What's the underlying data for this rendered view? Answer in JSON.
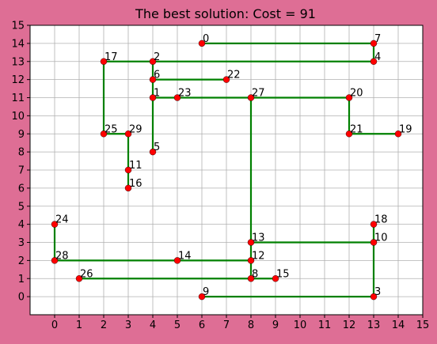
{
  "chart_data": {
    "type": "scatter",
    "title": "The best solution: Cost = 91",
    "xlim": [
      -1,
      15
    ],
    "ylim": [
      -1,
      15
    ],
    "x_ticks": [
      0,
      1,
      2,
      3,
      4,
      5,
      6,
      7,
      8,
      9,
      10,
      11,
      12,
      13,
      14,
      15
    ],
    "y_ticks": [
      0,
      1,
      2,
      3,
      4,
      5,
      6,
      7,
      8,
      9,
      10,
      11,
      12,
      13,
      14,
      15
    ],
    "grid": true,
    "colors": {
      "background": "#DE6E95",
      "plot": "#FFFFFF",
      "edge": "#008000",
      "point": "#FF0000",
      "grid": "#B0B0B0"
    },
    "points": [
      {
        "id": "0",
        "x": 6,
        "y": 14
      },
      {
        "id": "1",
        "x": 4,
        "y": 11
      },
      {
        "id": "2",
        "x": 4,
        "y": 13
      },
      {
        "id": "3",
        "x": 13,
        "y": 0
      },
      {
        "id": "4",
        "x": 13,
        "y": 13
      },
      {
        "id": "5",
        "x": 4,
        "y": 8
      },
      {
        "id": "6",
        "x": 4,
        "y": 12
      },
      {
        "id": "7",
        "x": 13,
        "y": 14
      },
      {
        "id": "8",
        "x": 8,
        "y": 1
      },
      {
        "id": "9",
        "x": 6,
        "y": 0
      },
      {
        "id": "10",
        "x": 13,
        "y": 3
      },
      {
        "id": "11",
        "x": 3,
        "y": 7
      },
      {
        "id": "12",
        "x": 8,
        "y": 2
      },
      {
        "id": "13",
        "x": 8,
        "y": 3
      },
      {
        "id": "14",
        "x": 5,
        "y": 2
      },
      {
        "id": "15",
        "x": 9,
        "y": 1
      },
      {
        "id": "16",
        "x": 3,
        "y": 6
      },
      {
        "id": "17",
        "x": 2,
        "y": 13
      },
      {
        "id": "18",
        "x": 13,
        "y": 4
      },
      {
        "id": "19",
        "x": 14,
        "y": 9
      },
      {
        "id": "20",
        "x": 12,
        "y": 11
      },
      {
        "id": "21",
        "x": 12,
        "y": 9
      },
      {
        "id": "22",
        "x": 7,
        "y": 12
      },
      {
        "id": "23",
        "x": 5,
        "y": 11
      },
      {
        "id": "24",
        "x": 0,
        "y": 4
      },
      {
        "id": "25",
        "x": 2,
        "y": 9
      },
      {
        "id": "26",
        "x": 1,
        "y": 1
      },
      {
        "id": "27",
        "x": 8,
        "y": 11
      },
      {
        "id": "28",
        "x": 0,
        "y": 2
      },
      {
        "id": "29",
        "x": 3,
        "y": 9
      }
    ],
    "edges": [
      [
        [
          6,
          14
        ],
        [
          13,
          14
        ]
      ],
      [
        [
          13,
          14
        ],
        [
          13,
          13
        ]
      ],
      [
        [
          2,
          13
        ],
        [
          13,
          13
        ]
      ],
      [
        [
          2,
          13
        ],
        [
          2,
          9
        ]
      ],
      [
        [
          4,
          13
        ],
        [
          4,
          12
        ]
      ],
      [
        [
          4,
          12
        ],
        [
          7,
          12
        ]
      ],
      [
        [
          4,
          12
        ],
        [
          4,
          8
        ]
      ],
      [
        [
          4,
          11
        ],
        [
          12,
          11
        ]
      ],
      [
        [
          12,
          11
        ],
        [
          12,
          9
        ]
      ],
      [
        [
          12,
          9
        ],
        [
          14,
          9
        ]
      ],
      [
        [
          8,
          11
        ],
        [
          8,
          1
        ]
      ],
      [
        [
          2,
          9
        ],
        [
          3,
          9
        ]
      ],
      [
        [
          3,
          9
        ],
        [
          3,
          6
        ]
      ],
      [
        [
          8,
          3
        ],
        [
          13,
          3
        ]
      ],
      [
        [
          13,
          4
        ],
        [
          13,
          0
        ]
      ],
      [
        [
          6,
          0
        ],
        [
          13,
          0
        ]
      ],
      [
        [
          0,
          4
        ],
        [
          0,
          2
        ]
      ],
      [
        [
          0,
          2
        ],
        [
          8,
          2
        ]
      ],
      [
        [
          1,
          1
        ],
        [
          9,
          1
        ]
      ]
    ]
  }
}
